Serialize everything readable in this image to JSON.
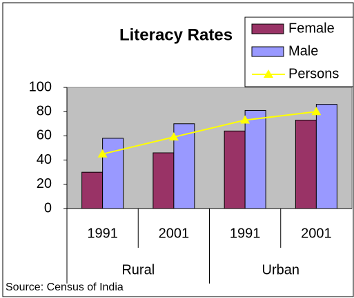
{
  "chart_data": {
    "type": "bar",
    "title": "Literacy Rates",
    "groups": [
      {
        "label": "Rural",
        "categories": [
          "1991",
          "2001"
        ]
      },
      {
        "label": "Urban",
        "categories": [
          "1991",
          "2001"
        ]
      }
    ],
    "series": [
      {
        "name": "Female",
        "type": "bar",
        "color": "#993366",
        "values": [
          30,
          46,
          64,
          73
        ]
      },
      {
        "name": "Male",
        "type": "bar",
        "color": "#9999ff",
        "values": [
          58,
          70,
          81,
          86
        ]
      },
      {
        "name": "Persons",
        "type": "line",
        "color": "#ffff00",
        "values": [
          45,
          59,
          73,
          80
        ]
      }
    ],
    "ylim": [
      0,
      100
    ],
    "yticks": [
      0,
      20,
      40,
      60,
      80,
      100
    ],
    "grid": false,
    "legend": "top-right",
    "source": "Source: Census of India"
  }
}
